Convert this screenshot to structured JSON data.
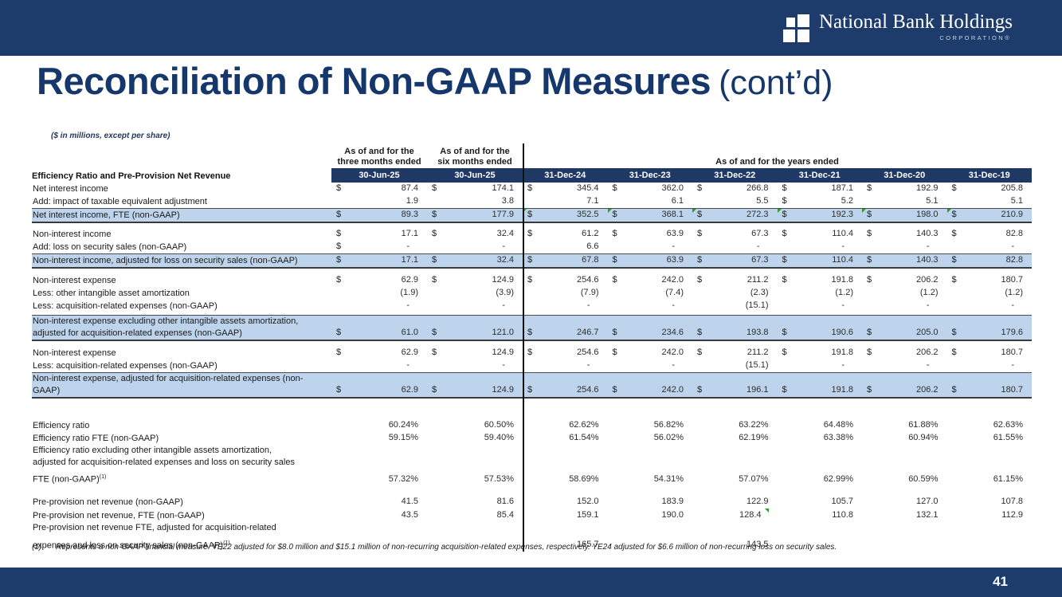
{
  "brand": {
    "name": "National Bank Holdings",
    "sub": "CORPORATION®"
  },
  "title": {
    "main": "Reconciliation of Non-GAAP Measures",
    "suffix": "(cont’d)"
  },
  "page_number": "41",
  "colors": {
    "navy_band": "#1d3c6c",
    "header_navy": "#1f3864",
    "highlight_blue": "#bdd4ec",
    "title_navy": "#16376b",
    "marker_green": "#2a9e2a"
  },
  "footnote": {
    "marker": "(1)",
    "text": "Represents a non-GAAP financial measure. YE22 adjusted for $8.0 million and $15.1 million of non-recurring acquisition-related expenses, respectively. YE24 adjusted for $6.6 million of non-recurring loss on security sales."
  },
  "table": {
    "units_note": "($ in millions, except per share)",
    "period_groups": {
      "three_months_line1": "As of and for the",
      "three_months_line2": "three months ended",
      "six_months_line1": "As of and for the",
      "six_months_line2": "six months ended",
      "years": "As of and for the years ended"
    },
    "row_header": "Efficiency Ratio and Pre-Provision Net Revenue",
    "col_headers": [
      "30-Jun-25",
      "30-Jun-25",
      "31-Dec-24",
      "31-Dec-23",
      "31-Dec-22",
      "31-Dec-21",
      "31-Dec-20",
      "31-Dec-19"
    ],
    "rows": [
      {
        "label": "Net interest income",
        "cells": [
          [
            "$",
            "87.4"
          ],
          [
            "$",
            "174.1"
          ],
          [
            "$",
            "345.4"
          ],
          [
            "$",
            "362.0"
          ],
          [
            "$",
            "266.8"
          ],
          [
            "$",
            "187.1"
          ],
          [
            "$",
            "192.9"
          ],
          [
            "$",
            "205.8"
          ]
        ]
      },
      {
        "label": "Add: impact of taxable equivalent adjustment",
        "cells": [
          [
            "",
            "1.9"
          ],
          [
            "",
            "3.8"
          ],
          [
            "",
            "7.1"
          ],
          [
            "",
            "6.1"
          ],
          [
            "",
            "5.5"
          ],
          [
            "$",
            "5.2"
          ],
          [
            "",
            "5.1"
          ],
          [
            "",
            "5.1"
          ]
        ]
      },
      {
        "label": "Net interest income, FTE (non-GAAP)",
        "style": "hl",
        "cells": [
          [
            "$",
            "89.3"
          ],
          [
            "$",
            "177.9"
          ],
          [
            "$",
            "352.5",
            "tl"
          ],
          [
            "$",
            "368.1",
            "tl"
          ],
          [
            "$",
            "272.3",
            "tl"
          ],
          [
            "$",
            "192.3",
            "tl"
          ],
          [
            "$",
            "198.0",
            "tl"
          ],
          [
            "$",
            "210.9",
            "tl"
          ]
        ]
      },
      {
        "spacer": true,
        "h": 6
      },
      {
        "label": "Non-interest income",
        "cells": [
          [
            "$",
            "17.1"
          ],
          [
            "$",
            "32.4"
          ],
          [
            "$",
            "61.2"
          ],
          [
            "$",
            "63.9"
          ],
          [
            "$",
            "67.3"
          ],
          [
            "$",
            "110.4"
          ],
          [
            "$",
            "140.3"
          ],
          [
            "$",
            "82.8"
          ]
        ]
      },
      {
        "label": "Add: loss on security sales (non-GAAP)",
        "cells": [
          [
            "$",
            "-"
          ],
          [
            "",
            "-"
          ],
          [
            "",
            "6.6"
          ],
          [
            "",
            "-"
          ],
          [
            "",
            "-"
          ],
          [
            "",
            "-"
          ],
          [
            "",
            "-"
          ],
          [
            "",
            "-"
          ]
        ]
      },
      {
        "label": "Non-interest income, adjusted for loss on security sales (non-GAAP)",
        "style": "hl",
        "cells": [
          [
            "$",
            "17.1"
          ],
          [
            "$",
            "32.4"
          ],
          [
            "$",
            "67.8"
          ],
          [
            "$",
            "63.9"
          ],
          [
            "$",
            "67.3"
          ],
          [
            "$",
            "110.4"
          ],
          [
            "$",
            "140.3"
          ],
          [
            "$",
            "82.8"
          ]
        ]
      },
      {
        "spacer": true,
        "h": 7
      },
      {
        "label": "Non-interest expense",
        "cells": [
          [
            "$",
            "62.9"
          ],
          [
            "$",
            "124.9"
          ],
          [
            "$",
            "254.6"
          ],
          [
            "$",
            "242.0"
          ],
          [
            "$",
            "211.2"
          ],
          [
            "$",
            "191.8"
          ],
          [
            "$",
            "206.2"
          ],
          [
            "$",
            "180.7"
          ]
        ]
      },
      {
        "label": "Less: other intangible asset amortization",
        "cells": [
          [
            "",
            "(1.9)"
          ],
          [
            "",
            "(3.9)"
          ],
          [
            "",
            "(7.9)"
          ],
          [
            "",
            "(7.4)"
          ],
          [
            "",
            "(2.3)"
          ],
          [
            "",
            "(1.2)"
          ],
          [
            "",
            "(1.2)"
          ],
          [
            "",
            "(1.2)"
          ]
        ]
      },
      {
        "label": "Less: acquisition-related expenses (non-GAAP)",
        "cells": [
          [
            "",
            "-"
          ],
          [
            "",
            "-"
          ],
          [
            "",
            "-"
          ],
          [
            "",
            "-"
          ],
          [
            "",
            "(15.1)"
          ],
          [
            "",
            "-"
          ],
          [
            "",
            "-"
          ],
          [
            "",
            "-"
          ]
        ]
      },
      {
        "spacer": true,
        "h": 3
      },
      {
        "label": "Non-interest expense excluding other intangible assets amortization,",
        "label2": "adjusted for acquisition-related expenses (non-GAAP)",
        "style": "hl",
        "cells": [
          [
            "$",
            "61.0"
          ],
          [
            "$",
            "121.0"
          ],
          [
            "$",
            "246.7"
          ],
          [
            "$",
            "234.6"
          ],
          [
            "$",
            "193.8"
          ],
          [
            "$",
            "190.6"
          ],
          [
            "$",
            "205.0"
          ],
          [
            "$",
            "179.6"
          ]
        ]
      },
      {
        "spacer": true,
        "h": 7
      },
      {
        "label": "Non-interest expense",
        "cells": [
          [
            "$",
            "62.9"
          ],
          [
            "$",
            "124.9"
          ],
          [
            "$",
            "254.6"
          ],
          [
            "$",
            "242.0"
          ],
          [
            "$",
            "211.2"
          ],
          [
            "$",
            "191.8"
          ],
          [
            "$",
            "206.2"
          ],
          [
            "$",
            "180.7"
          ]
        ]
      },
      {
        "label": "Less: acquisition-related expenses (non-GAAP)",
        "cells": [
          [
            "",
            "-"
          ],
          [
            "",
            "-"
          ],
          [
            "",
            "-"
          ],
          [
            "",
            "-"
          ],
          [
            "",
            "(15.1)"
          ],
          [
            "",
            "-"
          ],
          [
            "",
            "-"
          ],
          [
            "",
            "-"
          ]
        ]
      },
      {
        "label": "Non-interest expense, adjusted for acquisition-related expenses (non-",
        "label2": "GAAP)",
        "style": "hl",
        "cells": [
          [
            "$",
            "62.9"
          ],
          [
            "$",
            "124.9"
          ],
          [
            "$",
            "254.6"
          ],
          [
            "$",
            "242.0"
          ],
          [
            "$",
            "196.1"
          ],
          [
            "$",
            "191.8"
          ],
          [
            "$",
            "206.2"
          ],
          [
            "$",
            "180.7"
          ]
        ]
      },
      {
        "spacer": true,
        "h": 26
      },
      {
        "label": "Efficiency ratio",
        "cells": [
          [
            "",
            "60.24%"
          ],
          [
            "",
            "60.50%"
          ],
          [
            "",
            "62.62%"
          ],
          [
            "",
            "56.82%"
          ],
          [
            "",
            "63.22%"
          ],
          [
            "",
            "64.48%"
          ],
          [
            "",
            "61.88%"
          ],
          [
            "",
            "62.63%"
          ]
        ]
      },
      {
        "label": "Efficiency ratio FTE (non-GAAP)",
        "cells": [
          [
            "",
            "59.15%"
          ],
          [
            "",
            "59.40%"
          ],
          [
            "",
            "61.54%"
          ],
          [
            "",
            "56.02%"
          ],
          [
            "",
            "62.19%"
          ],
          [
            "",
            "63.38%"
          ],
          [
            "",
            "60.94%"
          ],
          [
            "",
            "61.55%"
          ]
        ]
      },
      {
        "label": "Efficiency ratio excluding other intangible assets amortization,"
      },
      {
        "label": "adjusted for acquisition-related expenses and loss on security sales"
      },
      {
        "spacer": true,
        "h": 3
      },
      {
        "label": "FTE (non-GAAP)",
        "sup": "(1)",
        "cells": [
          [
            "",
            "57.32%"
          ],
          [
            "",
            "57.53%"
          ],
          [
            "",
            "58.69%"
          ],
          [
            "",
            "54.31%"
          ],
          [
            "",
            "57.07%"
          ],
          [
            "",
            "62.99%"
          ],
          [
            "",
            "60.59%"
          ],
          [
            "",
            "61.15%"
          ]
        ]
      },
      {
        "spacer": true,
        "h": 12
      },
      {
        "label": "Pre-provision net revenue (non-GAAP)",
        "cells": [
          [
            "",
            "41.5"
          ],
          [
            "",
            "81.6"
          ],
          [
            "",
            "152.0"
          ],
          [
            "",
            "183.9"
          ],
          [
            "",
            "122.9"
          ],
          [
            "",
            "105.7"
          ],
          [
            "",
            "127.0"
          ],
          [
            "",
            "107.8"
          ]
        ]
      },
      {
        "label": "Pre-provision net revenue, FTE (non-GAAP)",
        "cells": [
          [
            "",
            "43.5"
          ],
          [
            "",
            "85.4"
          ],
          [
            "",
            "159.1"
          ],
          [
            "",
            "190.0"
          ],
          [
            "",
            "128.4",
            "tr"
          ],
          [
            "",
            "110.8"
          ],
          [
            "",
            "132.1"
          ],
          [
            "",
            "112.9"
          ]
        ]
      },
      {
        "label": "Pre-provision net revenue FTE, adjusted for acquisition-related"
      },
      {
        "spacer": true,
        "h": 4
      },
      {
        "label": "expenses and loss on security sales (non-GAAP)",
        "sup": "(1)",
        "cells": [
          null,
          null,
          [
            "",
            "165.7"
          ],
          null,
          [
            "",
            "143.5"
          ],
          null,
          null,
          null
        ]
      }
    ]
  }
}
